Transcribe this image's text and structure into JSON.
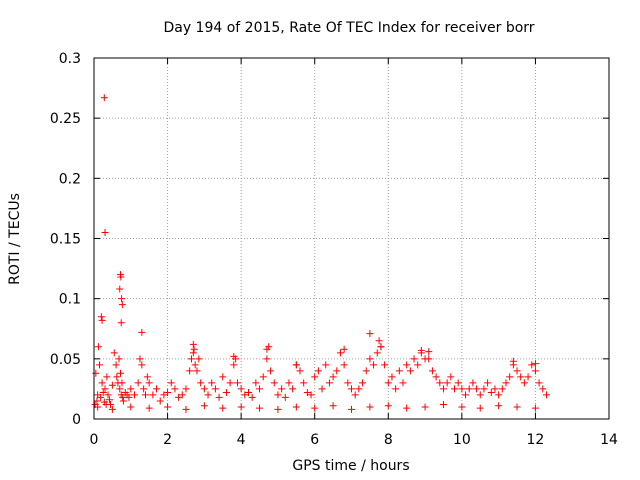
{
  "chart_data": {
    "type": "scatter",
    "title": "Day 194 of 2015, Rate Of TEC Index for receiver borr",
    "xlabel": "GPS time / hours",
    "ylabel": "ROTI / TECUs",
    "xlim": [
      0,
      14
    ],
    "ylim": [
      0,
      0.3
    ],
    "x_ticks": [
      0,
      2,
      4,
      6,
      8,
      10,
      12,
      14
    ],
    "x_tick_labels": [
      "0",
      "2",
      "4",
      "6",
      "8",
      "10",
      "12",
      "14"
    ],
    "y_ticks": [
      0,
      0.05,
      0.1,
      0.15,
      0.2,
      0.25,
      0.3
    ],
    "y_tick_labels": [
      "0",
      "0.05",
      "0.1",
      "0.15",
      "0.2",
      "0.25",
      "0.3"
    ],
    "grid": true,
    "marker": "+",
    "colors": {
      "points": "#ff0000",
      "grid": "#a0a0a0",
      "axes": "#000000"
    },
    "series": [
      {
        "name": "ROTI",
        "x": [
          0.03,
          0.05,
          0.08,
          0.1,
          0.12,
          0.15,
          0.18,
          0.22,
          0.25,
          0.28,
          0.3,
          0.33,
          0.35,
          0.38,
          0.42,
          0.45,
          0.5,
          0.55,
          0.6,
          0.62,
          0.65,
          0.68,
          0.7,
          0.72,
          0.74,
          0.76,
          0.78,
          0.8,
          0.85,
          0.9,
          0.95,
          1.0,
          1.1,
          1.2,
          1.25,
          1.3,
          1.35,
          1.4,
          1.45,
          1.5,
          1.6,
          1.7,
          1.8,
          1.9,
          2.0,
          2.1,
          2.2,
          2.3,
          2.4,
          2.5,
          2.6,
          2.65,
          2.7,
          2.75,
          2.8,
          2.85,
          2.9,
          3.0,
          3.1,
          3.2,
          3.3,
          3.4,
          3.5,
          3.6,
          3.7,
          3.8,
          3.85,
          3.9,
          4.0,
          4.1,
          4.2,
          4.3,
          4.4,
          4.5,
          4.6,
          4.7,
          4.75,
          4.8,
          4.9,
          5.0,
          5.1,
          5.2,
          5.3,
          5.4,
          5.5,
          5.6,
          5.7,
          5.8,
          5.9,
          6.0,
          6.1,
          6.2,
          6.3,
          6.4,
          6.5,
          6.6,
          6.7,
          6.8,
          6.9,
          7.0,
          7.1,
          7.2,
          7.3,
          7.4,
          7.5,
          7.6,
          7.7,
          7.8,
          7.9,
          8.0,
          8.1,
          8.2,
          8.3,
          8.4,
          8.5,
          8.6,
          8.7,
          8.8,
          8.9,
          9.0,
          9.1,
          9.2,
          9.3,
          9.4,
          9.5,
          9.6,
          9.7,
          9.8,
          9.9,
          10.0,
          10.1,
          10.2,
          10.3,
          10.4,
          10.5,
          10.6,
          10.7,
          10.8,
          10.9,
          11.0,
          11.1,
          11.2,
          11.3,
          11.4,
          11.5,
          11.6,
          11.7,
          11.8,
          11.9,
          12.0,
          12.1,
          12.2,
          12.3,
          0.2,
          0.22,
          0.28,
          0.3,
          0.72,
          0.73,
          0.75,
          0.77,
          0.7,
          0.74,
          1.3,
          2.7,
          2.72,
          3.8,
          4.7,
          5.5,
          6.8,
          7.5,
          7.75,
          7.8,
          8.9,
          9.1,
          11.4,
          12.0,
          0.1,
          0.5,
          1.0,
          1.5,
          2.0,
          2.5,
          3.0,
          3.5,
          4.0,
          4.5,
          5.0,
          5.5,
          6.0,
          6.5,
          7.0,
          7.5,
          8.0,
          8.5,
          9.0,
          9.5,
          10.0,
          10.5,
          11.0,
          11.5,
          12.0
        ],
        "y": [
          0.012,
          0.038,
          0.015,
          0.02,
          0.06,
          0.045,
          0.018,
          0.03,
          0.022,
          0.014,
          0.025,
          0.012,
          0.035,
          0.02,
          0.016,
          0.012,
          0.028,
          0.055,
          0.045,
          0.035,
          0.03,
          0.05,
          0.025,
          0.038,
          0.02,
          0.03,
          0.018,
          0.015,
          0.022,
          0.02,
          0.018,
          0.025,
          0.02,
          0.03,
          0.05,
          0.045,
          0.025,
          0.02,
          0.035,
          0.03,
          0.02,
          0.025,
          0.015,
          0.02,
          0.022,
          0.03,
          0.025,
          0.018,
          0.02,
          0.025,
          0.04,
          0.05,
          0.055,
          0.045,
          0.04,
          0.05,
          0.03,
          0.025,
          0.02,
          0.03,
          0.025,
          0.018,
          0.035,
          0.022,
          0.03,
          0.045,
          0.05,
          0.03,
          0.025,
          0.02,
          0.022,
          0.018,
          0.03,
          0.025,
          0.035,
          0.05,
          0.06,
          0.04,
          0.03,
          0.02,
          0.025,
          0.018,
          0.03,
          0.025,
          0.045,
          0.04,
          0.03,
          0.022,
          0.02,
          0.035,
          0.04,
          0.025,
          0.045,
          0.03,
          0.035,
          0.04,
          0.055,
          0.045,
          0.03,
          0.025,
          0.02,
          0.025,
          0.03,
          0.04,
          0.05,
          0.045,
          0.055,
          0.06,
          0.045,
          0.03,
          0.035,
          0.025,
          0.04,
          0.03,
          0.045,
          0.04,
          0.05,
          0.045,
          0.055,
          0.05,
          0.05,
          0.04,
          0.035,
          0.03,
          0.025,
          0.03,
          0.035,
          0.025,
          0.03,
          0.025,
          0.02,
          0.025,
          0.03,
          0.025,
          0.02,
          0.025,
          0.03,
          0.022,
          0.025,
          0.02,
          0.025,
          0.03,
          0.035,
          0.045,
          0.04,
          0.035,
          0.03,
          0.035,
          0.045,
          0.04,
          0.03,
          0.025,
          0.02,
          0.085,
          0.082,
          0.267,
          0.155,
          0.12,
          0.118,
          0.1,
          0.095,
          0.108,
          0.08,
          0.072,
          0.062,
          0.058,
          0.052,
          0.058,
          0.045,
          0.058,
          0.071,
          0.065,
          0.06,
          0.057,
          0.056,
          0.048,
          0.046,
          0.01,
          0.008,
          0.01,
          0.009,
          0.01,
          0.008,
          0.011,
          0.009,
          0.01,
          0.009,
          0.008,
          0.01,
          0.009,
          0.011,
          0.008,
          0.01,
          0.011,
          0.009,
          0.01,
          0.012,
          0.01,
          0.009,
          0.011,
          0.01,
          0.009
        ]
      }
    ]
  }
}
